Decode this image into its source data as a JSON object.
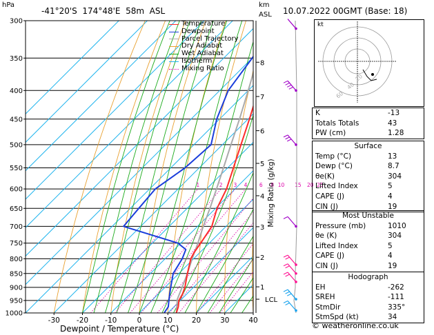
{
  "header": {
    "hpa_label": "hPa",
    "location": "-41°20'S  174°48'E  58m  ASL",
    "km_label": "km",
    "asl_label": "ASL",
    "datetime": "10.07.2022 00GMT (Base: 18)"
  },
  "colors": {
    "temperature": "#ff2a2a",
    "dewpoint": "#1a3ddb",
    "parcel": "#aaaaaa",
    "dry_adiabat": "#e8a030",
    "wet_adiabat": "#1aaa1a",
    "isotherm": "#22b5ee",
    "mixing_ratio": "#dd00aa",
    "wind": "#a000c8"
  },
  "chart_data": {
    "type": "line",
    "xlabel": "Dewpoint / Temperature (°C)",
    "ylabel": "Mixing Ratio (g/kg)",
    "x_ticks": [
      "-30",
      "-20",
      "-10",
      "0",
      "10",
      "20",
      "30",
      "40"
    ],
    "x_tick_values": [
      -30,
      -20,
      -10,
      0,
      10,
      20,
      30,
      40
    ],
    "pressure_ticks": [
      "300",
      "350",
      "400",
      "450",
      "500",
      "550",
      "600",
      "650",
      "700",
      "750",
      "800",
      "850",
      "900",
      "950",
      "1000"
    ],
    "pressure_values": [
      300,
      350,
      400,
      450,
      500,
      550,
      600,
      650,
      700,
      750,
      800,
      850,
      900,
      950,
      1000
    ],
    "xlim": [
      -40,
      40
    ],
    "ylim": [
      1000,
      300
    ],
    "y_scale": "log",
    "skew": 45,
    "legend_position": "top-right",
    "legend": [
      "Temperature",
      "Dewpoint",
      "Parcel Trajectory",
      "Dry Adiabat",
      "Wet Adiabat",
      "Isotherm",
      "Mixing Ratio"
    ],
    "km_ticks": [
      {
        "label": "8",
        "p": 356
      },
      {
        "label": "7",
        "p": 410
      },
      {
        "label": "6",
        "p": 472
      },
      {
        "label": "5",
        "p": 540
      },
      {
        "label": "4",
        "p": 617
      },
      {
        "label": "3",
        "p": 701
      },
      {
        "label": "2",
        "p": 795
      },
      {
        "label": "1",
        "p": 898
      },
      {
        "label": "LCL",
        "p": 945
      }
    ],
    "mixing_ratio_labels": [
      "1",
      "2",
      "3",
      "4",
      "6",
      "8",
      "10",
      "15",
      "20",
      "25"
    ],
    "mixing_ratio_values": [
      1,
      2,
      3,
      4,
      6,
      8,
      10,
      15,
      20,
      25
    ],
    "series": [
      {
        "name": "Temperature",
        "p": [
          1000,
          975,
          950,
          925,
          900,
          850,
          800,
          780,
          750,
          700,
          650,
          600,
          550,
          500,
          450,
          400,
          350,
          300
        ],
        "t": [
          13,
          11.5,
          9.5,
          8.5,
          7,
          3,
          -1,
          -2,
          -3,
          -5,
          -9.5,
          -13,
          -18,
          -23.5,
          -29.5,
          -36.5,
          -44,
          -52
        ]
      },
      {
        "name": "Dewpoint",
        "p": [
          1000,
          975,
          950,
          925,
          900,
          850,
          800,
          770,
          750,
          700,
          650,
          600,
          550,
          500,
          450,
          400,
          350,
          300
        ],
        "t": [
          8.7,
          8,
          6,
          4,
          2,
          -2,
          -4,
          -6,
          -11,
          -36,
          -37,
          -38,
          -35,
          -34,
          -41,
          -47,
          -50,
          -54
        ]
      },
      {
        "name": "Parcel Trajectory",
        "p": [
          1000,
          945,
          900,
          850,
          800,
          750,
          700,
          650,
          600,
          550,
          500,
          450,
          400,
          350,
          300
        ],
        "t": [
          13,
          8.5,
          6,
          3,
          -0.5,
          -4,
          -8,
          -12,
          -16.5,
          -21.5,
          -27,
          -33,
          -40,
          -48,
          -57
        ]
      }
    ]
  },
  "hodograph": {
    "label": "kt",
    "ring_labels": [
      "20",
      "40",
      "60"
    ]
  },
  "indices": {
    "top": [
      {
        "label": "K",
        "value": "-13"
      },
      {
        "label": "Totals Totals",
        "value": "43"
      },
      {
        "label": "PW (cm)",
        "value": "1.28"
      }
    ],
    "surface_header": "Surface",
    "surface": [
      {
        "label": "Temp (°C)",
        "value": "13"
      },
      {
        "label": "Dewp (°C)",
        "value": "8.7"
      },
      {
        "label": "θe(K)",
        "value": "304"
      },
      {
        "label": "Lifted Index",
        "value": "5"
      },
      {
        "label": "CAPE (J)",
        "value": "4"
      },
      {
        "label": "CIN (J)",
        "value": "19"
      }
    ],
    "unstable_header": "Most Unstable",
    "unstable": [
      {
        "label": "Pressure (mb)",
        "value": "1010"
      },
      {
        "label": "θe (K)",
        "value": "304"
      },
      {
        "label": "Lifted Index",
        "value": "5"
      },
      {
        "label": "CAPE (J)",
        "value": "4"
      },
      {
        "label": "CIN (J)",
        "value": "19"
      }
    ],
    "hodo_header": "Hodograph",
    "hodo": [
      {
        "label": "EH",
        "value": "-262"
      },
      {
        "label": "SREH",
        "value": "-111"
      },
      {
        "label": "StmDir",
        "value": "335°"
      },
      {
        "label": "StmSpd (kt)",
        "value": "34"
      }
    ]
  },
  "credit": "© weatheronline.co.uk"
}
